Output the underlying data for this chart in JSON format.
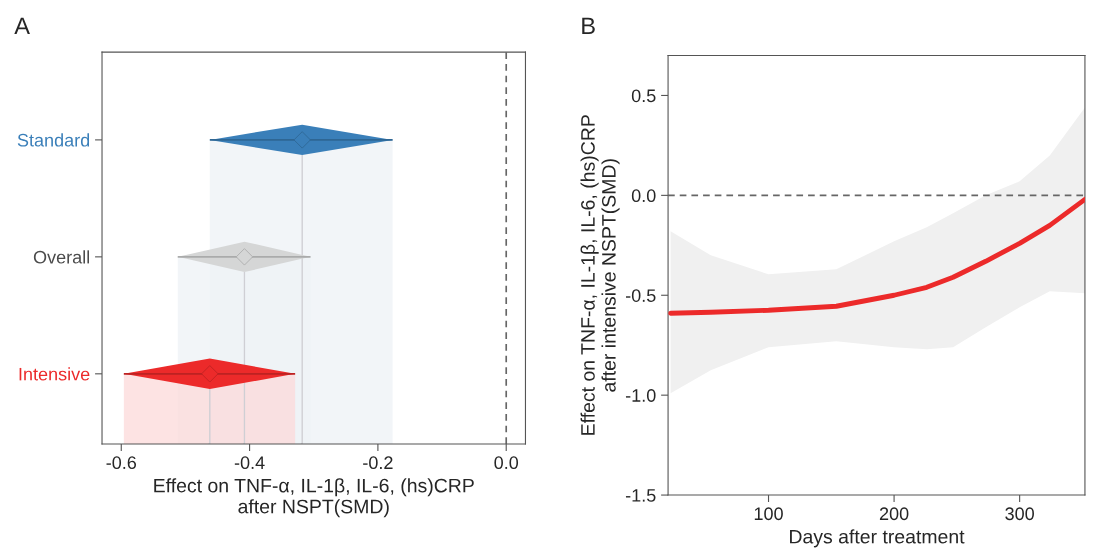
{
  "chart_data": [
    {
      "type": "scatter",
      "orientation": "horizontal",
      "marker": "diamond",
      "categories": [
        "Standard",
        "Overall",
        "Intensive"
      ],
      "values": [
        -0.318,
        -0.408,
        -0.462
      ],
      "errors": [
        [
          -0.462,
          -0.177
        ],
        [
          -0.512,
          -0.305
        ],
        [
          -0.596,
          -0.329
        ]
      ],
      "colors": [
        "#3a7fb9",
        "#d5d6d6",
        "#ec2a2a"
      ],
      "xlim": [
        -0.63,
        0.03
      ],
      "xticks": [
        {
          "value": -0.6,
          "label": "-0.6"
        },
        {
          "value": -0.4,
          "label": "-0.4"
        },
        {
          "value": -0.2,
          "label": "-0.2"
        },
        {
          "value": 0.0,
          "label": "0.0"
        }
      ],
      "xlabel": "Effect on TNF-α, IL-1β, IL-6, (hs)CRP\nafter NSPT(SMD)",
      "ref_lines": [
        {
          "axis": "x",
          "value": 0.0,
          "line_style": "dashed"
        }
      ],
      "grid": false,
      "annotations": [
        "A"
      ]
    },
    {
      "type": "line",
      "x": [
        22,
        54,
        100,
        154,
        200,
        226,
        247,
        273,
        300,
        324,
        352
      ],
      "series": [
        {
          "color": "#ec2a2a",
          "values": [
            -0.59,
            -0.585,
            -0.575,
            -0.555,
            -0.5,
            -0.46,
            -0.41,
            -0.33,
            -0.24,
            -0.15,
            -0.02
          ],
          "upper": [
            -0.18,
            -0.3,
            -0.395,
            -0.37,
            -0.23,
            -0.16,
            -0.09,
            0.0,
            0.07,
            0.2,
            0.44
          ],
          "lower": [
            -0.99,
            -0.875,
            -0.76,
            -0.73,
            -0.76,
            -0.77,
            -0.76,
            -0.66,
            -0.56,
            -0.48,
            -0.49
          ]
        }
      ],
      "xlim": [
        20,
        352
      ],
      "xticks": [
        100,
        200,
        300
      ],
      "ylim": [
        -1.5,
        0.7
      ],
      "yticks": [
        {
          "value": -1.5,
          "label": "-1.5"
        },
        {
          "value": -1.0,
          "label": "-1.0"
        },
        {
          "value": -0.5,
          "label": "-0.5"
        },
        {
          "value": 0.0,
          "label": "0.0"
        },
        {
          "value": 0.5,
          "label": "0.5"
        }
      ],
      "xlabel": "Days after treatment",
      "ylabel": "Effect on TNF-α, IL-1β, IL-6, (hs)CRP\nafter intensive NSPT(SMD)",
      "ref_lines": [
        {
          "axis": "y",
          "value": 0.0,
          "line_style": "dashed"
        }
      ],
      "line_style": "solid",
      "marker": "none",
      "grid": false,
      "annotations": [
        "B"
      ]
    }
  ]
}
